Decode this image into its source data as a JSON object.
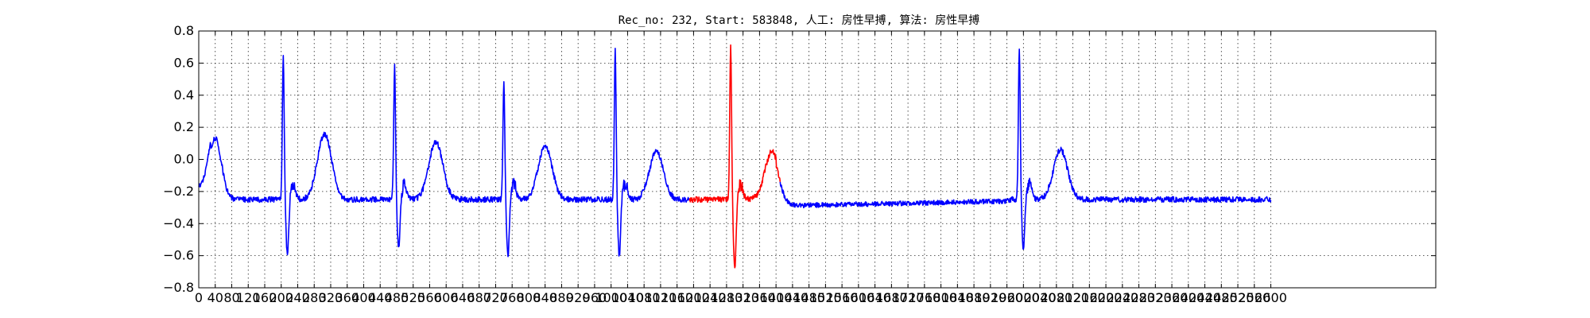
{
  "chart_data": {
    "type": "line",
    "title": "Rec_no: 232, Start: 583848, 人工: 房性早搏, 算法: 房性早搏",
    "xlabel": "",
    "ylabel": "",
    "xlim": [
      0,
      3000
    ],
    "ylim": [
      -0.8,
      0.8
    ],
    "yticks": [
      0.8,
      0.6,
      0.4,
      0.2,
      0.0,
      -0.2,
      -0.4,
      -0.6,
      -0.8
    ],
    "ytick_labels": [
      "0.8",
      "0.6",
      "0.4",
      "0.2",
      "0.0",
      "−0.2",
      "−0.4",
      "−0.6",
      "−0.8"
    ],
    "xtick_step": 40,
    "xtick_max": 2600,
    "grid": true,
    "sample_count": 2600,
    "baseline_level": -0.25,
    "series": [
      {
        "color": "#0000ff",
        "segments": [
          [
            0,
            1190
          ],
          [
            1410,
            2600
          ]
        ]
      },
      {
        "color": "#ff0000",
        "segments": [
          [
            1190,
            1410
          ]
        ]
      }
    ],
    "beats": [
      {
        "r": 205,
        "amp": 0.65,
        "s": -0.64,
        "t": 0.16
      },
      {
        "r": 475,
        "amp": 0.59,
        "s": -0.6,
        "t": 0.11
      },
      {
        "r": 740,
        "amp": 0.49,
        "s": -0.64,
        "t": 0.08
      },
      {
        "r": 1010,
        "amp": 0.68,
        "s": -0.65,
        "t": 0.05
      },
      {
        "r": 1290,
        "amp": 0.7,
        "s": -0.74,
        "t": 0.05
      },
      {
        "r": 1990,
        "amp": 0.7,
        "s": -0.6,
        "t": 0.06
      }
    ]
  }
}
